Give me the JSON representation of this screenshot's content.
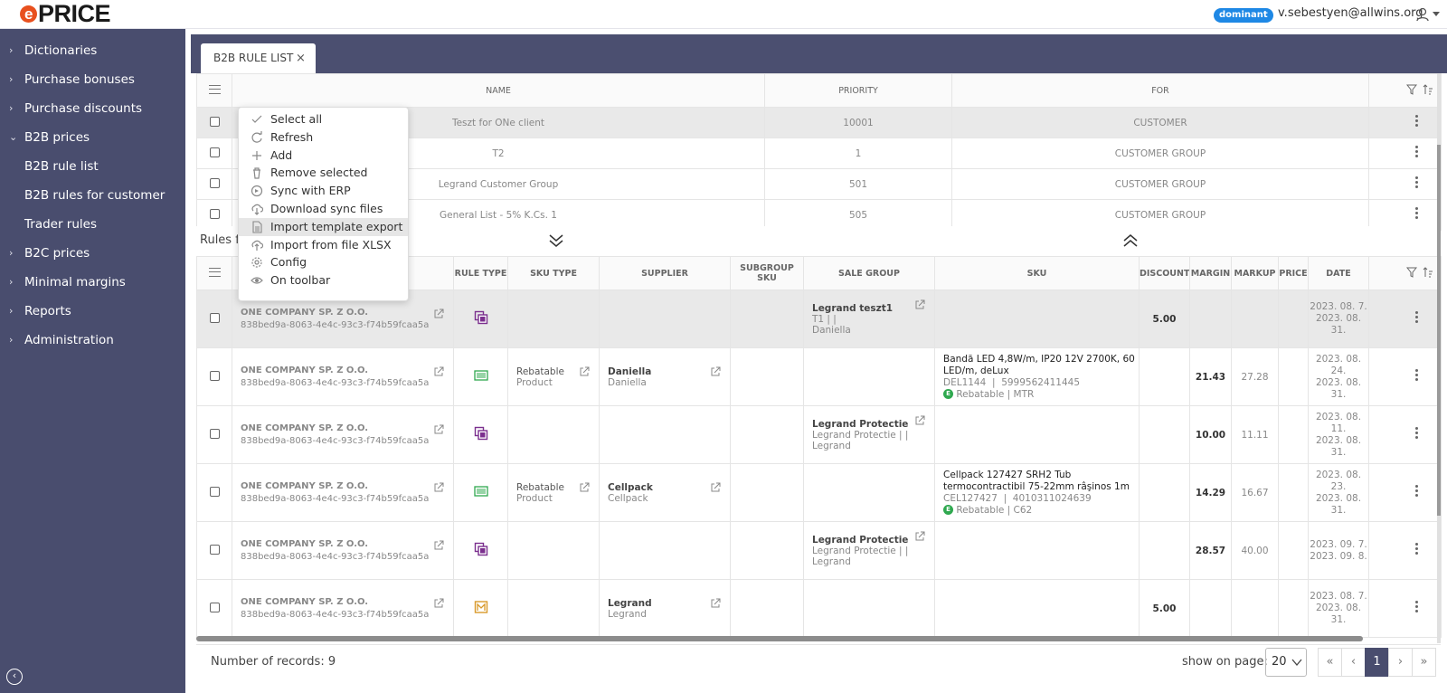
{
  "header": {
    "logo": {
      "e": "e",
      "rest": "PRICE"
    },
    "badge": "dominant",
    "user": "v.sebestyen@allwins.org"
  },
  "sidebar": {
    "items": [
      {
        "label": "Dictionaries",
        "chevron": "›"
      },
      {
        "label": "Purchase bonuses",
        "chevron": "›"
      },
      {
        "label": "Purchase discounts",
        "chevron": "›"
      },
      {
        "label": "B2B prices",
        "chevron": "⌄"
      },
      {
        "label": "B2B rule list",
        "chevron": ""
      },
      {
        "label": "B2B rules for customer",
        "chevron": ""
      },
      {
        "label": "Trader rules",
        "chevron": ""
      },
      {
        "label": "B2C prices",
        "chevron": "›"
      },
      {
        "label": "Minimal margins",
        "chevron": "›"
      },
      {
        "label": "Reports",
        "chevron": "›"
      },
      {
        "label": "Administration",
        "chevron": "›"
      }
    ]
  },
  "tab": {
    "label": "B2B RULE LIST",
    "close": "×"
  },
  "rules_table": {
    "headers": [
      "NAME",
      "PRIORITY",
      "FOR"
    ],
    "rows": [
      {
        "name": "Teszt for ONe client",
        "priority": "10001",
        "for": "CUSTOMER"
      },
      {
        "name": "T2",
        "priority": "1",
        "for": "CUSTOMER GROUP"
      },
      {
        "name": "Legrand Customer Group",
        "priority": "501",
        "for": "CUSTOMER GROUP"
      },
      {
        "name": "General List - 5% K.Cs. 1",
        "priority": "505",
        "for": "CUSTOMER GROUP"
      }
    ]
  },
  "rules_for_label": "Rules fo",
  "detail_table": {
    "headers": [
      "RULE TYPE",
      "SKU TYPE",
      "SUPPLIER",
      "SUBGROUP SKU",
      "SALE GROUP",
      "SKU",
      "DISCOUNT",
      "MARGIN",
      "MARKUP",
      "PRICE",
      "DATE"
    ],
    "rows": [
      {
        "company": "ONE COMPANY SP. Z O.O.",
        "uuid": "838bed9a-8063-4e4c-93c3-f74b59fcaa5a",
        "rule_icon": "copy-icon",
        "sku_type": "",
        "sku_type_sub": "",
        "supplier": "",
        "supplier_sub": "",
        "sale_group": "Legrand teszt1",
        "sale_group_sub": "T1  |    |",
        "sale_group_sub2": "Daniella",
        "sku": "",
        "sku_code": "",
        "sku_ean": "",
        "sku_tags": "",
        "discount": "5.00",
        "margin": "",
        "markup": "",
        "price": "",
        "date1": "2023. 08. 7.",
        "date2": "2023. 08.",
        "date3": "31."
      },
      {
        "company": "ONE COMPANY SP. Z O.O.",
        "uuid": "838bed9a-8063-4e4c-93c3-f74b59fcaa5a",
        "rule_icon": "barcode-icon",
        "sku_type": "Rebatable",
        "sku_type_sub": "Product",
        "supplier": "Daniella",
        "supplier_sub": "Daniella",
        "sale_group": "",
        "sale_group_sub": "",
        "sale_group_sub2": "",
        "sku": "Bandă LED 4,8W/m, IP20 12V 2700K, 60 LED/m, deLux",
        "sku_code": "DEL1144",
        "sku_ean": "5999562411445",
        "sku_tags": "Rebatable  |  MTR",
        "discount": "",
        "margin": "21.43",
        "markup": "27.28",
        "price": "",
        "date1": "2023. 08.",
        "date2": "24.",
        "date3": "2023. 08.",
        "date4": "31."
      },
      {
        "company": "ONE COMPANY SP. Z O.O.",
        "uuid": "838bed9a-8063-4e4c-93c3-f74b59fcaa5a",
        "rule_icon": "copy-icon",
        "sku_type": "",
        "sku_type_sub": "",
        "supplier": "",
        "supplier_sub": "",
        "sale_group": "Legrand Protectie",
        "sale_group_sub": "Legrand Protectie  |    |",
        "sale_group_sub2": "Legrand",
        "sku": "",
        "sku_code": "",
        "sku_ean": "",
        "sku_tags": "",
        "discount": "",
        "margin": "10.00",
        "markup": "11.11",
        "price": "",
        "date1": "2023. 08. 11.",
        "date2": "2023. 08.",
        "date3": "31."
      },
      {
        "company": "ONE COMPANY SP. Z O.O.",
        "uuid": "838bed9a-8063-4e4c-93c3-f74b59fcaa5a",
        "rule_icon": "barcode-icon",
        "sku_type": "Rebatable",
        "sku_type_sub": "Product",
        "supplier": "Cellpack",
        "supplier_sub": "Cellpack",
        "sale_group": "",
        "sale_group_sub": "",
        "sale_group_sub2": "",
        "sku": "Cellpack 127427 SRH2 Tub termocontractibil 75-22mm râşinos 1m",
        "sku_code": "CEL127427",
        "sku_ean": "4010311024639",
        "sku_tags": "Rebatable  |  C62",
        "discount": "",
        "margin": "14.29",
        "markup": "16.67",
        "price": "",
        "date1": "2023. 08.",
        "date2": "23.",
        "date3": "2023. 08.",
        "date4": "31."
      },
      {
        "company": "ONE COMPANY SP. Z O.O.",
        "uuid": "838bed9a-8063-4e4c-93c3-f74b59fcaa5a",
        "rule_icon": "copy-icon",
        "sku_type": "",
        "sku_type_sub": "",
        "supplier": "",
        "supplier_sub": "",
        "sale_group": "Legrand Protectie",
        "sale_group_sub": "Legrand Protectie  |    |",
        "sale_group_sub2": "Legrand",
        "sku": "",
        "sku_code": "",
        "sku_ean": "",
        "sku_tags": "",
        "discount": "",
        "margin": "28.57",
        "markup": "40.00",
        "price": "",
        "date1": "2023. 09. 7.",
        "date2": "2023. 09. 8.",
        "date3": ""
      },
      {
        "company": "ONE COMPANY SP. Z O.O.",
        "uuid": "838bed9a-8063-4e4c-93c3-f74b59fcaa5a",
        "rule_icon": "supplier-icon",
        "sku_type": "",
        "sku_type_sub": "",
        "supplier": "Legrand",
        "supplier_sub": "Legrand",
        "sale_group": "",
        "sale_group_sub": "",
        "sale_group_sub2": "",
        "sku": "",
        "sku_code": "",
        "sku_ean": "",
        "sku_tags": "",
        "discount": "5.00",
        "margin": "",
        "markup": "",
        "price": "",
        "date1": "2023. 08. 7.",
        "date2": "2023. 08.",
        "date3": "31."
      }
    ]
  },
  "context_menu": {
    "items": [
      {
        "label": "Select all",
        "icon": "check-icon"
      },
      {
        "label": "Refresh",
        "icon": "refresh-icon"
      },
      {
        "label": "Add",
        "icon": "plus-icon"
      },
      {
        "label": "Remove selected",
        "icon": "trash-icon"
      },
      {
        "label": "Sync with ERP",
        "icon": "sync-icon"
      },
      {
        "label": "Download sync files",
        "icon": "cloud-download-icon"
      },
      {
        "label": "Import template export",
        "icon": "file-icon"
      },
      {
        "label": "Import from file XLSX",
        "icon": "cloud-upload-icon"
      },
      {
        "label": "Config",
        "icon": "gear-icon"
      },
      {
        "label": "On toolbar",
        "icon": "eye-icon"
      }
    ]
  },
  "footer": {
    "records": "Number of records: 9",
    "show_on_page": "show on page:",
    "page_size": "20",
    "pager": {
      "first": "«",
      "prev": "‹",
      "current": "1",
      "next": "›",
      "last": "»"
    }
  }
}
